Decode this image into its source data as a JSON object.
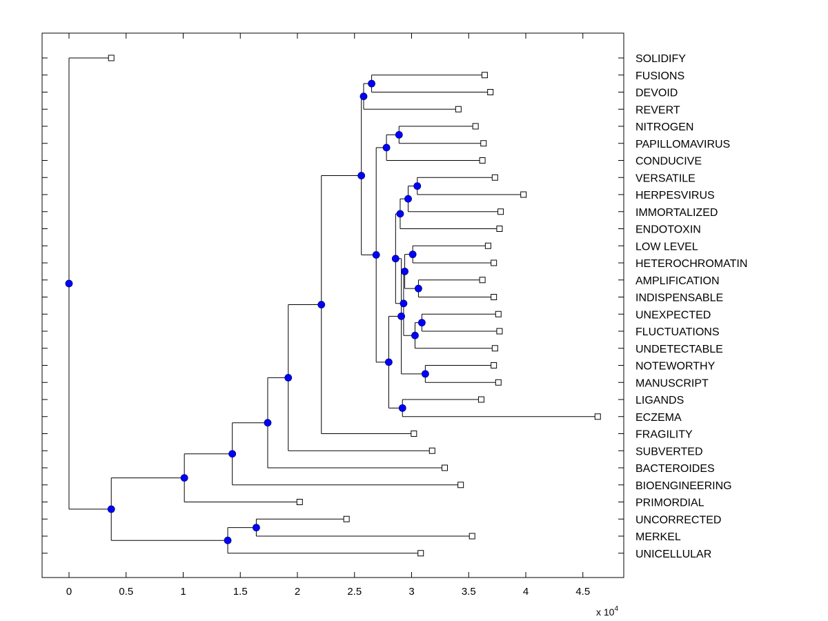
{
  "chart_data": {
    "type": "dendrogram",
    "title": "",
    "xlabel": "",
    "ylabel": "",
    "x_scale_label": "x 10",
    "x_scale_exponent": "4",
    "x_unit_multiplier": 10000,
    "xlim": [
      -0.23,
      4.85
    ],
    "x_ticks": [
      0,
      0.5,
      1,
      1.5,
      2,
      2.5,
      3,
      3.5,
      4,
      4.5
    ],
    "x_tick_labels": [
      "0",
      "0.5",
      "1",
      "1.5",
      "2",
      "2.5",
      "3",
      "3.5",
      "4",
      "4.5"
    ],
    "colors": {
      "node_fill": "#0000ff",
      "leaf_fill": "#ffffff",
      "line": "#000000",
      "background": "#ffffff"
    },
    "leaves": [
      {
        "label": "SOLIDIFY",
        "x": 0.37
      },
      {
        "label": "FUSIONS",
        "x": 3.64
      },
      {
        "label": "DEVOID",
        "x": 3.69
      },
      {
        "label": "REVERT",
        "x": 3.41
      },
      {
        "label": "NITROGEN",
        "x": 3.56
      },
      {
        "label": "PAPILLOMAVIRUS",
        "x": 3.63
      },
      {
        "label": "CONDUCIVE",
        "x": 3.62
      },
      {
        "label": "VERSATILE",
        "x": 3.73
      },
      {
        "label": "HERPESVIRUS",
        "x": 3.98
      },
      {
        "label": "IMMORTALIZED",
        "x": 3.78
      },
      {
        "label": "ENDOTOXIN",
        "x": 3.77
      },
      {
        "label": "LOW LEVEL",
        "x": 3.67
      },
      {
        "label": "HETEROCHROMATIN",
        "x": 3.72
      },
      {
        "label": "AMPLIFICATION",
        "x": 3.62
      },
      {
        "label": "INDISPENSABLE",
        "x": 3.72
      },
      {
        "label": "UNEXPECTED",
        "x": 3.76
      },
      {
        "label": "FLUCTUATIONS",
        "x": 3.77
      },
      {
        "label": "UNDETECTABLE",
        "x": 3.73
      },
      {
        "label": "NOTEWORTHY",
        "x": 3.72
      },
      {
        "label": "MANUSCRIPT",
        "x": 3.76
      },
      {
        "label": "LIGANDS",
        "x": 3.61
      },
      {
        "label": "ECZEMA",
        "x": 4.63
      },
      {
        "label": "FRAGILITY",
        "x": 3.02
      },
      {
        "label": "SUBVERTED",
        "x": 3.18
      },
      {
        "label": "BACTEROIDES",
        "x": 3.29
      },
      {
        "label": "BIOENGINEERING",
        "x": 3.43
      },
      {
        "label": "PRIMORDIAL",
        "x": 2.02
      },
      {
        "label": "UNCORRECTED",
        "x": 2.43
      },
      {
        "label": "MERKEL",
        "x": 3.53
      },
      {
        "label": "UNICELLULAR",
        "x": 3.08
      }
    ],
    "nodes": [
      {
        "id": "n1",
        "x": 2.65,
        "children": [
          "FUSIONS",
          "DEVOID"
        ]
      },
      {
        "id": "n2",
        "x": 2.58,
        "children": [
          "n1",
          "REVERT"
        ]
      },
      {
        "id": "n3",
        "x": 2.89,
        "children": [
          "NITROGEN",
          "PAPILLOMAVIRUS"
        ]
      },
      {
        "id": "n4",
        "x": 2.78,
        "children": [
          "n3",
          "CONDUCIVE"
        ]
      },
      {
        "id": "n5",
        "x": 3.05,
        "children": [
          "VERSATILE",
          "HERPESVIRUS"
        ]
      },
      {
        "id": "n6",
        "x": 2.97,
        "children": [
          "n5",
          "IMMORTALIZED"
        ]
      },
      {
        "id": "n7",
        "x": 2.9,
        "children": [
          "n6",
          "ENDOTOXIN"
        ]
      },
      {
        "id": "n8",
        "x": 3.01,
        "children": [
          "LOW LEVEL",
          "HETEROCHROMATIN"
        ]
      },
      {
        "id": "n9",
        "x": 3.06,
        "children": [
          "AMPLIFICATION",
          "INDISPENSABLE"
        ]
      },
      {
        "id": "n10",
        "x": 2.94,
        "children": [
          "n8",
          "n9"
        ]
      },
      {
        "id": "n11",
        "x": 3.09,
        "children": [
          "UNEXPECTED",
          "FLUCTUATIONS"
        ]
      },
      {
        "id": "n12",
        "x": 3.03,
        "children": [
          "n11",
          "UNDETECTABLE"
        ]
      },
      {
        "id": "n13",
        "x": 2.93,
        "children": [
          "n10",
          "n12"
        ]
      },
      {
        "id": "n14",
        "x": 2.86,
        "children": [
          "n7",
          "n13"
        ]
      },
      {
        "id": "n15",
        "x": 3.12,
        "children": [
          "NOTEWORTHY",
          "MANUSCRIPT"
        ]
      },
      {
        "id": "n16",
        "x": 2.91,
        "children": [
          "n14",
          "n15"
        ]
      },
      {
        "id": "n17",
        "x": 2.92,
        "children": [
          "LIGANDS",
          "ECZEMA"
        ]
      },
      {
        "id": "n18",
        "x": 2.8,
        "children": [
          "n16",
          "n17"
        ]
      },
      {
        "id": "n19",
        "x": 2.69,
        "children": [
          "n4",
          "n18"
        ]
      },
      {
        "id": "n20",
        "x": 2.56,
        "children": [
          "n2",
          "n19"
        ]
      },
      {
        "id": "n21",
        "x": 2.21,
        "children": [
          "n20",
          "FRAGILITY"
        ]
      },
      {
        "id": "n22",
        "x": 1.92,
        "children": [
          "n21",
          "SUBVERTED"
        ]
      },
      {
        "id": "n23",
        "x": 1.74,
        "children": [
          "n22",
          "BACTEROIDES"
        ]
      },
      {
        "id": "n24",
        "x": 1.43,
        "children": [
          "n23",
          "BIOENGINEERING"
        ]
      },
      {
        "id": "n25",
        "x": 1.01,
        "children": [
          "n24",
          "PRIMORDIAL"
        ]
      },
      {
        "id": "n26",
        "x": 1.64,
        "children": [
          "UNCORRECTED",
          "MERKEL"
        ]
      },
      {
        "id": "n27",
        "x": 1.39,
        "children": [
          "n26",
          "UNICELLULAR"
        ]
      },
      {
        "id": "n28",
        "x": 0.37,
        "children": [
          "n25",
          "n27"
        ]
      },
      {
        "id": "root",
        "x": 0.0,
        "children": [
          "SOLIDIFY",
          "n28"
        ]
      }
    ]
  }
}
